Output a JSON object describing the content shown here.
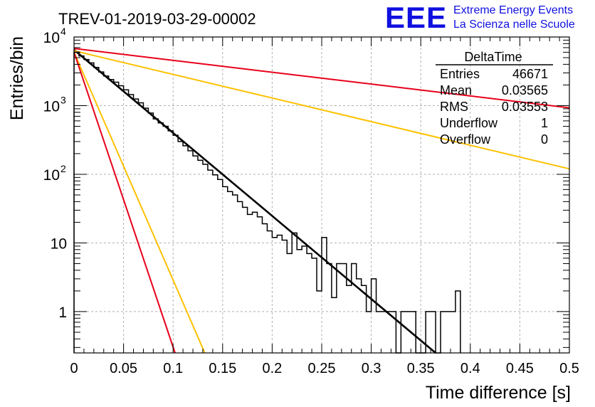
{
  "chart_data": {
    "type": "line",
    "title": "TREV-01-2019-03-29-00002",
    "xlabel": "Time difference [s]",
    "ylabel": "Entries/bin",
    "xlim": [
      0,
      0.5
    ],
    "ylim": [
      0.25,
      10000
    ],
    "y_scale": "log",
    "grid": true,
    "x_ticks": [
      "0",
      "0.05",
      "0.1",
      "0.15",
      "0.2",
      "0.25",
      "0.3",
      "0.35",
      "0.4",
      "0.45",
      "0.5"
    ],
    "y_ticks": [
      {
        "value": 1,
        "label": "1"
      },
      {
        "value": 10,
        "label": "10"
      },
      {
        "value": 100,
        "label": "10",
        "sup": "2"
      },
      {
        "value": 1000,
        "label": "10",
        "sup": "3"
      },
      {
        "value": 10000,
        "label": "10",
        "sup": "4"
      }
    ],
    "histogram": {
      "bin_width": 0.005,
      "values": [
        6000,
        5300,
        4700,
        4200,
        3600,
        3100,
        2700,
        2400,
        2200,
        1950,
        1700,
        1450,
        1250,
        1100,
        920,
        780,
        640,
        560,
        500,
        430,
        370,
        300,
        260,
        220,
        185,
        160,
        140,
        115,
        98,
        84,
        66,
        56,
        50,
        40,
        33,
        26,
        28,
        24,
        19,
        15,
        12,
        13,
        11,
        7,
        14,
        8,
        9,
        7,
        6,
        2,
        12,
        5,
        1.6,
        5,
        5,
        2.4,
        5,
        3,
        2.4,
        1,
        3,
        1,
        1,
        1,
        1,
        0,
        1,
        1,
        1,
        0,
        0,
        1,
        1,
        0,
        1,
        1,
        1,
        2
      ]
    },
    "fit_lines": [
      {
        "name": "fit",
        "color": "#000000",
        "x": [
          0,
          0.365
        ],
        "y": [
          6500,
          0.25
        ]
      },
      {
        "name": "upper-slow",
        "color": "#e8001a",
        "x": [
          0,
          0.5
        ],
        "y": [
          6800,
          930
        ]
      },
      {
        "name": "lower-slow",
        "color": "#ffc100",
        "x": [
          0,
          0.5
        ],
        "y": [
          6300,
          120
        ]
      },
      {
        "name": "upper-fast",
        "color": "#ffc100",
        "x": [
          0,
          0.132
        ],
        "y": [
          6000,
          0.25
        ]
      },
      {
        "name": "lower-fast",
        "color": "#e8001a",
        "x": [
          0,
          0.102
        ],
        "y": [
          6000,
          0.25
        ]
      }
    ],
    "stats_box": {
      "title": "DeltaTime",
      "rows": [
        {
          "label": "Entries",
          "value": "46671"
        },
        {
          "label": "Mean",
          "value": "0.03565"
        },
        {
          "label": "RMS",
          "value": "0.03553"
        },
        {
          "label": "Underflow",
          "value": "1"
        },
        {
          "label": "Overflow",
          "value": "0"
        }
      ]
    }
  },
  "logo": {
    "mark": "EEE",
    "line1": "Extreme Energy Events",
    "line2": "La Scienza nelle Scuole",
    "color": "#1010e0"
  }
}
